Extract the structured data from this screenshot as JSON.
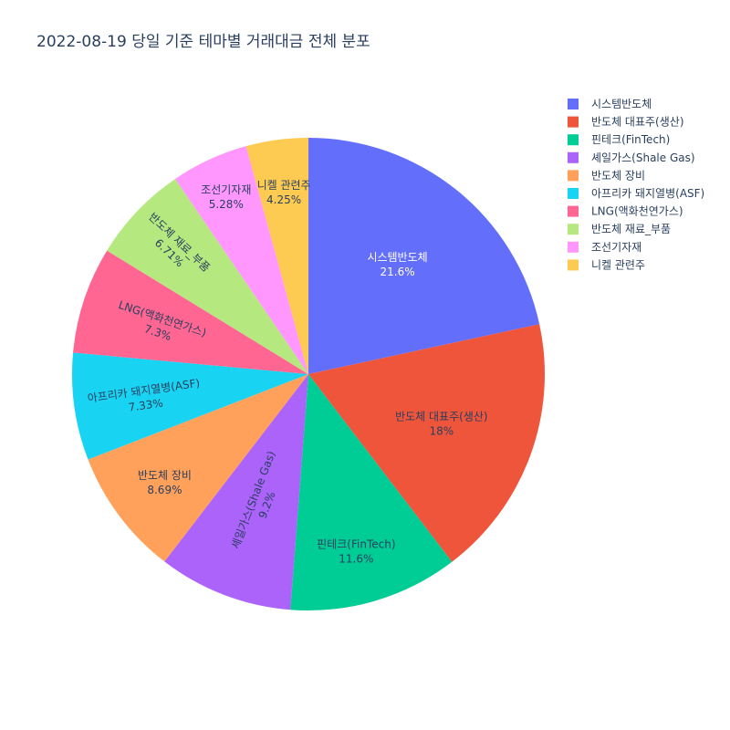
{
  "chart_data": {
    "type": "pie",
    "title": "2022-08-19 당일 기준 테마별 거래대금 전체 분포",
    "slices": [
      {
        "label": "시스템반도체",
        "value": 21.6,
        "display": "21.6%",
        "color": "#636efa"
      },
      {
        "label": "반도체 대표주(생산)",
        "value": 18.0,
        "display": "18%",
        "color": "#ef553b"
      },
      {
        "label": "핀테크(FinTech)",
        "value": 11.6,
        "display": "11.6%",
        "color": "#00cc96"
      },
      {
        "label": "셰일가스(Shale Gas)",
        "value": 9.2,
        "display": "9.2%",
        "color": "#ab63fa"
      },
      {
        "label": "반도체 장비",
        "value": 8.69,
        "display": "8.69%",
        "color": "#ffa15a"
      },
      {
        "label": "아프리카 돼지열병(ASF)",
        "value": 7.33,
        "display": "7.33%",
        "color": "#19d3f3"
      },
      {
        "label": "LNG(액화천연가스)",
        "value": 7.3,
        "display": "7.3%",
        "color": "#ff6692"
      },
      {
        "label": "반도체 재료_부품",
        "value": 6.71,
        "display": "6.71%",
        "color": "#b6e880"
      },
      {
        "label": "조선기자재",
        "value": 5.28,
        "display": "5.28%",
        "color": "#ff97ff"
      },
      {
        "label": "니켈 관련주",
        "value": 4.25,
        "display": "4.25%",
        "color": "#fecb52"
      }
    ],
    "legend_position": "top-right",
    "direction": "clockwise",
    "start": "12 o'clock"
  }
}
